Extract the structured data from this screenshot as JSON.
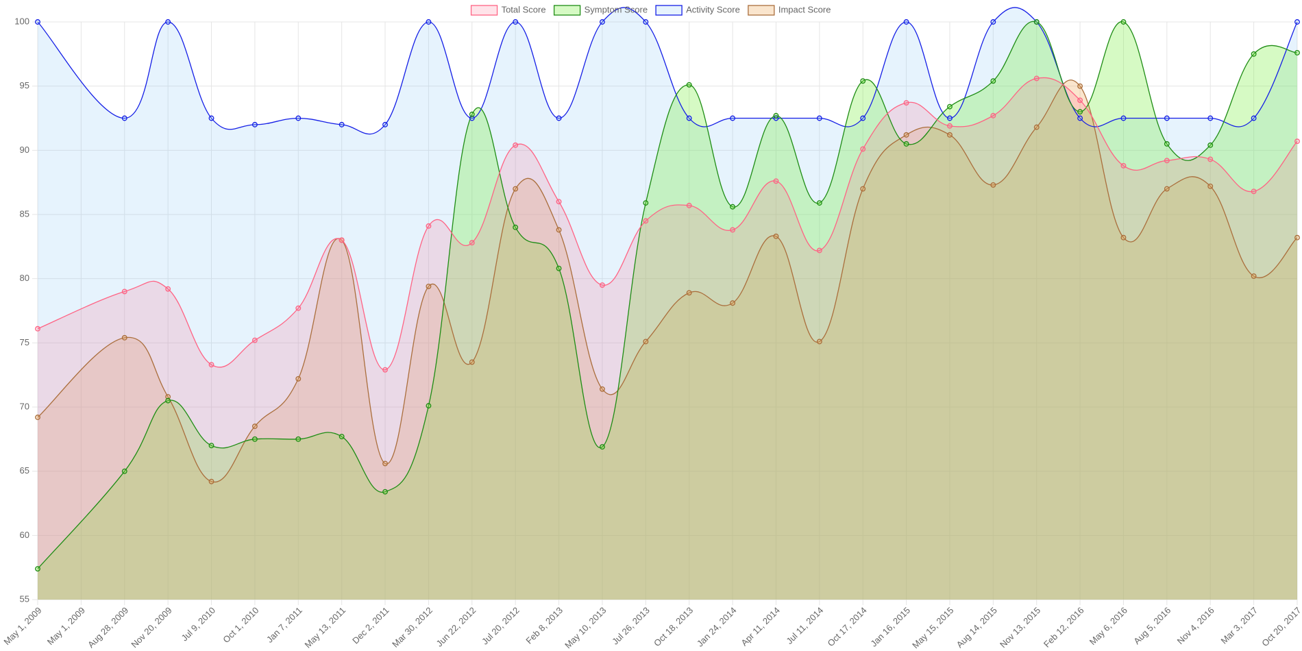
{
  "chart_data": {
    "type": "line",
    "fill": true,
    "categories": [
      "May 1, 2009",
      "May 1, 2009",
      "Aug 28, 2009",
      "Nov 20, 2009",
      "Jul 9, 2010",
      "Oct 1, 2010",
      "Jan 7, 2011",
      "May 13, 2011",
      "Dec 2, 2011",
      "Mar 30, 2012",
      "Jun 22, 2012",
      "Jul 20, 2012",
      "Feb 8, 2013",
      "May 10, 2013",
      "Jul 26, 2013",
      "Oct 18, 2013",
      "Jan 24, 2014",
      "Apr 11, 2014",
      "Jul 11, 2014",
      "Oct 17, 2014",
      "Jan 16, 2015",
      "May 15, 2015",
      "Aug 14, 2015",
      "Nov 13, 2015",
      "Feb 12, 2016",
      "May 6, 2016",
      "Aug 5, 2016",
      "Nov 4, 2016",
      "Mar 3, 2017",
      "Oct 20, 2017"
    ],
    "series": [
      {
        "name": "Total Score",
        "color": "rgb(255,99,132)",
        "fill_color": "rgba(255,99,132,0.18)",
        "values": [
          76.1,
          null,
          79,
          79.2,
          73.3,
          75.2,
          77.7,
          83,
          72.9,
          84.1,
          82.8,
          90.4,
          86,
          79.5,
          84.5,
          85.7,
          83.8,
          87.6,
          82.2,
          90.1,
          93.7,
          91.9,
          92.7,
          95.6,
          93.9,
          88.8,
          89.2,
          89.3,
          86.8,
          90.7
        ]
      },
      {
        "name": "Symptom Score",
        "color": "rgb(30,140,20)",
        "fill_color": "rgba(120,240,60,0.3)",
        "values": [
          57.4,
          null,
          65,
          70.5,
          67,
          67.5,
          67.5,
          67.7,
          63.4,
          70.1,
          92.8,
          84,
          80.8,
          66.9,
          85.9,
          95.1,
          85.6,
          92.7,
          85.9,
          95.4,
          90.5,
          93.4,
          95.4,
          100,
          93,
          100,
          90.5,
          90.4,
          97.5,
          97.6
        ]
      },
      {
        "name": "Activity Score",
        "color": "rgb(20,30,230)",
        "fill_color": "rgba(140,200,245,0.22)",
        "values": [
          100,
          null,
          92.5,
          100,
          92.5,
          92,
          92.5,
          92,
          92,
          100,
          92.5,
          100,
          92.5,
          100,
          100,
          92.5,
          92.5,
          92.5,
          92.5,
          92.5,
          100,
          92.5,
          100,
          100,
          92.5,
          92.5,
          92.5,
          92.5,
          92.5,
          100
        ]
      },
      {
        "name": "Impact Score",
        "color": "rgb(170,110,60)",
        "fill_color": "rgba(240,170,90,0.3)",
        "values": [
          69.2,
          null,
          75.4,
          70.8,
          64.2,
          68.5,
          72.2,
          83,
          65.6,
          79.4,
          73.5,
          87,
          83.8,
          71.4,
          75.1,
          78.9,
          78.1,
          83.3,
          75.1,
          87,
          91.2,
          91.2,
          87.3,
          91.8,
          95,
          83.2,
          87,
          87.2,
          80.2,
          83.2
        ]
      }
    ],
    "ylim": [
      55,
      100
    ],
    "yticks": [
      55,
      60,
      65,
      70,
      75,
      80,
      85,
      90,
      95,
      100
    ],
    "grid": true,
    "legend": "top"
  }
}
